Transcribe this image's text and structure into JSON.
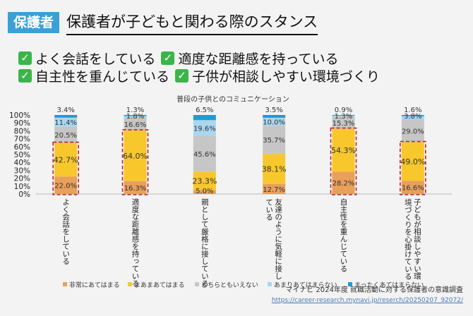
{
  "header": {
    "tag": "保護者",
    "title": "保護者が子どもと関わる際のスタンス"
  },
  "points": [
    [
      "よく会話をしている",
      "適度な距離感を持っている"
    ],
    [
      "自主性を重んじている",
      "子供が相談しやすい環境づくり"
    ]
  ],
  "source": {
    "line1": "マイナビ 2024年度 就職活動に対する保護者の意識調査",
    "url": "https://career-research.mynavi.jp/reserch/20250207_92072/"
  },
  "chart_data": {
    "type": "bar",
    "stacked": true,
    "title": "普段の子供とのコミュニケーション",
    "ylim": [
      0,
      100
    ],
    "yticks": [
      "0%",
      "10%",
      "20%",
      "30%",
      "40%",
      "50%",
      "60%",
      "70%",
      "80%",
      "90%",
      "100%"
    ],
    "categories": [
      "よく会話をしている",
      "適度な距離感を持っている",
      "親として厳格に接している",
      "友達のように気軽に接している",
      "自主性を重んじている",
      "子どもが相談しやすい環境づくりを心掛けている"
    ],
    "series": [
      {
        "name": "非常にあてはまる",
        "color": "#e8a05a",
        "values": [
          22.0,
          16.3,
          5.0,
          12.7,
          28.2,
          16.6
        ],
        "labels": [
          "22.0%",
          "16.3%",
          "5.0%",
          "12.7%",
          "28.2%",
          "16.6%"
        ]
      },
      {
        "name": "まあまあてはまる",
        "color": "#f8c72c",
        "values": [
          42.7,
          64.0,
          23.3,
          38.1,
          54.3,
          49.0
        ],
        "labels": [
          "42.7%",
          "64.0%",
          "23.3%",
          "38.1%",
          "54.3%",
          "49.0%"
        ]
      },
      {
        "name": "どちらともいえない",
        "color": "#c6c6c6",
        "values": [
          20.5,
          16.6,
          45.6,
          35.7,
          15.3,
          29.0
        ],
        "labels": [
          "20.5%",
          "16.6%",
          "45.6%",
          "35.7%",
          "15.3%",
          "29.0%"
        ]
      },
      {
        "name": "あまりあてはまらない",
        "color": "#a9d7ef",
        "values": [
          11.4,
          1.8,
          19.6,
          10.0,
          1.3,
          3.8
        ],
        "labels": [
          "11.4%",
          "1.8%",
          "19.6%",
          "10.0%",
          "1.3%",
          "3.8%"
        ]
      },
      {
        "name": "まったくあてはまらない",
        "color": "#1f9ad6",
        "values": [
          3.4,
          1.3,
          6.5,
          3.5,
          0.9,
          1.6
        ],
        "labels": [
          "3.4%",
          "1.3%",
          "6.5%",
          "3.5%",
          "0.9%",
          "1.6%"
        ]
      }
    ],
    "highlighted": [
      "よく会話をしている",
      "適度な距離感を持っている",
      "自主性を重んじている",
      "子どもが相談しやすい環境づくりを心掛けている"
    ],
    "legend_position": "bottom"
  },
  "colors": {
    "accent": "#3aa0d6",
    "check": "#3bb54a",
    "highlight": "#c0202a"
  }
}
